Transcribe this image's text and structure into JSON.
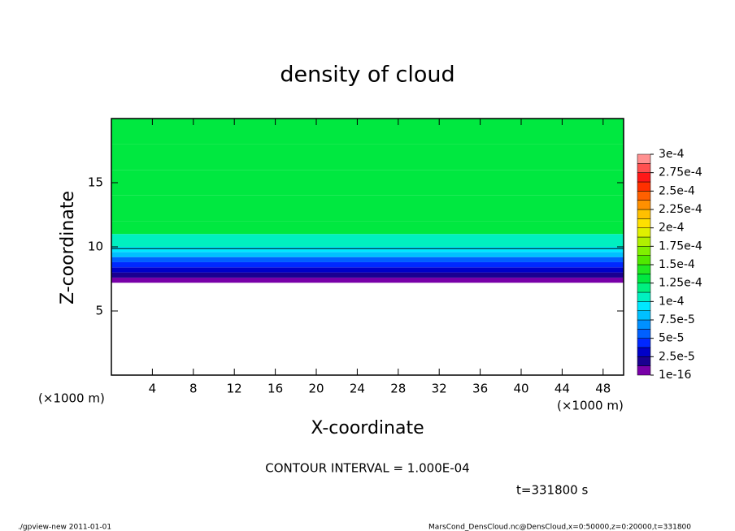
{
  "chart_data": {
    "type": "contour",
    "title": "density of cloud",
    "xlabel": "X-coordinate",
    "ylabel": "Z-coordinate",
    "xunit": "(×1000 m)",
    "xlim": [
      0,
      50
    ],
    "xticks": [
      4,
      8,
      12,
      16,
      20,
      24,
      28,
      32,
      36,
      40,
      44,
      48
    ],
    "ylim": [
      0,
      20
    ],
    "yticks": [
      5,
      10,
      15
    ],
    "z": [
      7.2,
      7.6,
      8.0,
      8.4,
      8.8,
      9.2,
      9.6,
      10.0,
      11.0,
      12.0,
      14.0,
      16.0,
      18.0
    ],
    "values": [
      1e-05,
      2e-05,
      3e-05,
      4.5e-05,
      6e-05,
      7.5e-05,
      9e-05,
      0.000105,
      0.00013,
      0.00013,
      0.00013,
      0.00013,
      0.00013
    ],
    "contour_interval": {
      "value": 0.0001,
      "label": "CONTOUR INTERVAL = 1.000E-04"
    },
    "colorbar": {
      "levels": [
        1e-16,
        1.25e-05,
        2.5e-05,
        3.75e-05,
        5e-05,
        6.25e-05,
        7.5e-05,
        8.75e-05,
        0.0001,
        0.0001125,
        0.000125,
        0.0001375,
        0.00015,
        0.0001625,
        0.000175,
        0.0001875,
        0.0002,
        0.0002125,
        0.000225,
        0.0002375,
        0.00025,
        0.0002625,
        0.000275,
        0.0002875,
        0.0003
      ],
      "colors": [
        "#7800a8",
        "#1a0090",
        "#0000c8",
        "#0028ff",
        "#0060ff",
        "#0090ff",
        "#00c0ff",
        "#00e8ff",
        "#00f0c0",
        "#00f080",
        "#00e840",
        "#20e820",
        "#50e800",
        "#80f000",
        "#b0f000",
        "#e0f000",
        "#ffe000",
        "#ffc000",
        "#ff9000",
        "#ff6000",
        "#ff3000",
        "#ff1818",
        "#ff5050",
        "#ff9090"
      ],
      "ticks": [
        {
          "value": 1e-16,
          "label": "1e-16"
        },
        {
          "value": 2.5e-05,
          "label": "2.5e-5"
        },
        {
          "value": 5e-05,
          "label": "5e-5"
        },
        {
          "value": 7.5e-05,
          "label": "7.5e-5"
        },
        {
          "value": 0.0001,
          "label": "1e-4"
        },
        {
          "value": 0.000125,
          "label": "1.25e-4"
        },
        {
          "value": 0.00015,
          "label": "1.5e-4"
        },
        {
          "value": 0.000175,
          "label": "1.75e-4"
        },
        {
          "value": 0.0002,
          "label": "2e-4"
        },
        {
          "value": 0.000225,
          "label": "2.25e-4"
        },
        {
          "value": 0.00025,
          "label": "2.5e-4"
        },
        {
          "value": 0.000275,
          "label": "2.75e-4"
        },
        {
          "value": 0.0003,
          "label": "3e-4"
        }
      ]
    },
    "time_label": "t=331800 s",
    "footer_left": "./gpview-new  2011-01-01",
    "footer_right": "MarsCond_DensCloud.nc@DensCloud,x=0:50000,z=0:20000,t=331800"
  }
}
